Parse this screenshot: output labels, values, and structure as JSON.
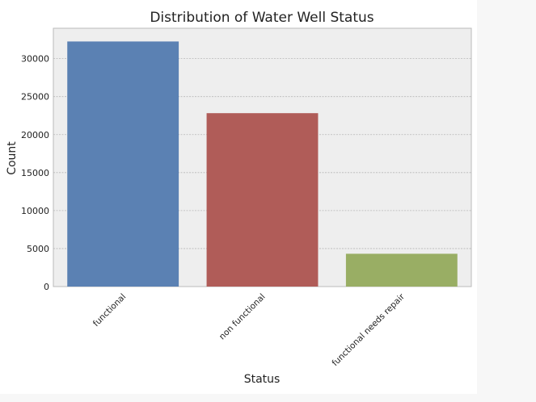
{
  "chart_data": {
    "type": "bar",
    "title": "Distribution of Water Well Status",
    "xlabel": "Status",
    "ylabel": "Count",
    "categories": [
      "functional",
      "non functional",
      "functional needs repair"
    ],
    "values": [
      32259,
      22824,
      4317
    ],
    "ylim": [
      0,
      34000
    ],
    "yticks": [
      0,
      5000,
      10000,
      15000,
      20000,
      25000,
      30000
    ],
    "grid": true,
    "legend": "none",
    "colors": [
      "#5b81b3",
      "#b05c58",
      "#99ae64"
    ],
    "plot_background": "#eeeeee"
  }
}
